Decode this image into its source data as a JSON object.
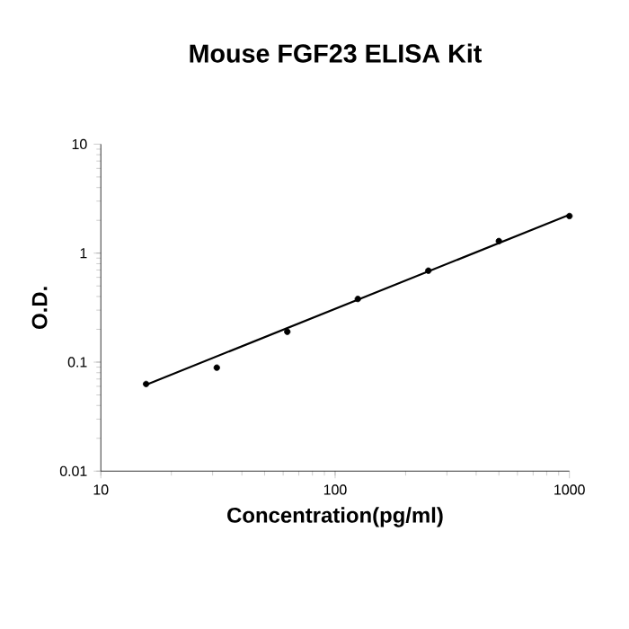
{
  "chart_data": {
    "type": "scatter",
    "title": "Mouse FGF23 ELISA Kit",
    "xlabel": "Concentration(pg/ml)",
    "ylabel": "O.D.",
    "log": "xy",
    "xlim": [
      10,
      1000
    ],
    "xticks": [
      10,
      100,
      1000
    ],
    "ylim": [
      0.01,
      10
    ],
    "yticks": [
      0.01,
      0.1,
      1,
      10
    ],
    "grid": false,
    "series": [
      {
        "marker": "circle",
        "color": "#000000",
        "x": [
          15.6,
          31.25,
          62.5,
          125,
          250,
          500,
          1000
        ],
        "values": [
          0.063,
          0.089,
          0.19,
          0.38,
          0.69,
          1.29,
          2.19
        ]
      },
      {
        "type": "line",
        "marker": "none",
        "color": "#000000",
        "line_style": "solid",
        "x": [
          15.6,
          1000
        ],
        "values": [
          0.062,
          2.25
        ]
      }
    ]
  }
}
